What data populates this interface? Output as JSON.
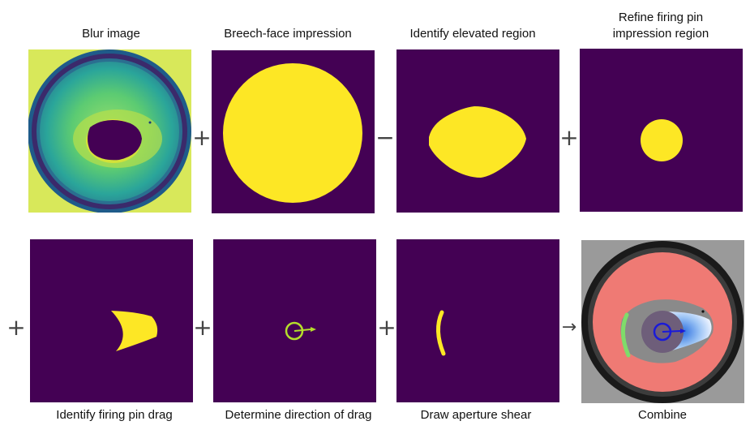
{
  "colors": {
    "background_purple": "#440154",
    "mask_yellow": "#fde725",
    "operator_gray": "#444444"
  },
  "steps": [
    {
      "label": "Blur image",
      "icon": "blur-image"
    },
    {
      "label": "Breech-face impression",
      "icon": "breech-face-mask"
    },
    {
      "label": "Identify elevated region",
      "icon": "elevated-region-mask"
    },
    {
      "label": "Refine firing pin\nimpression region",
      "icon": "firing-pin-mask"
    },
    {
      "label": "Identify firing pin drag",
      "icon": "firing-pin-drag-mask"
    },
    {
      "label": "Determine direction of drag",
      "icon": "drag-direction-arrow"
    },
    {
      "label": "Draw aperture shear",
      "icon": "aperture-shear-arc"
    },
    {
      "label": "Combine",
      "icon": "combined-overlay"
    }
  ],
  "operators": {
    "op1": "+",
    "op2": "−",
    "op3": "+",
    "op4": "+",
    "op5": "+",
    "op6": "+",
    "op7": "→"
  }
}
